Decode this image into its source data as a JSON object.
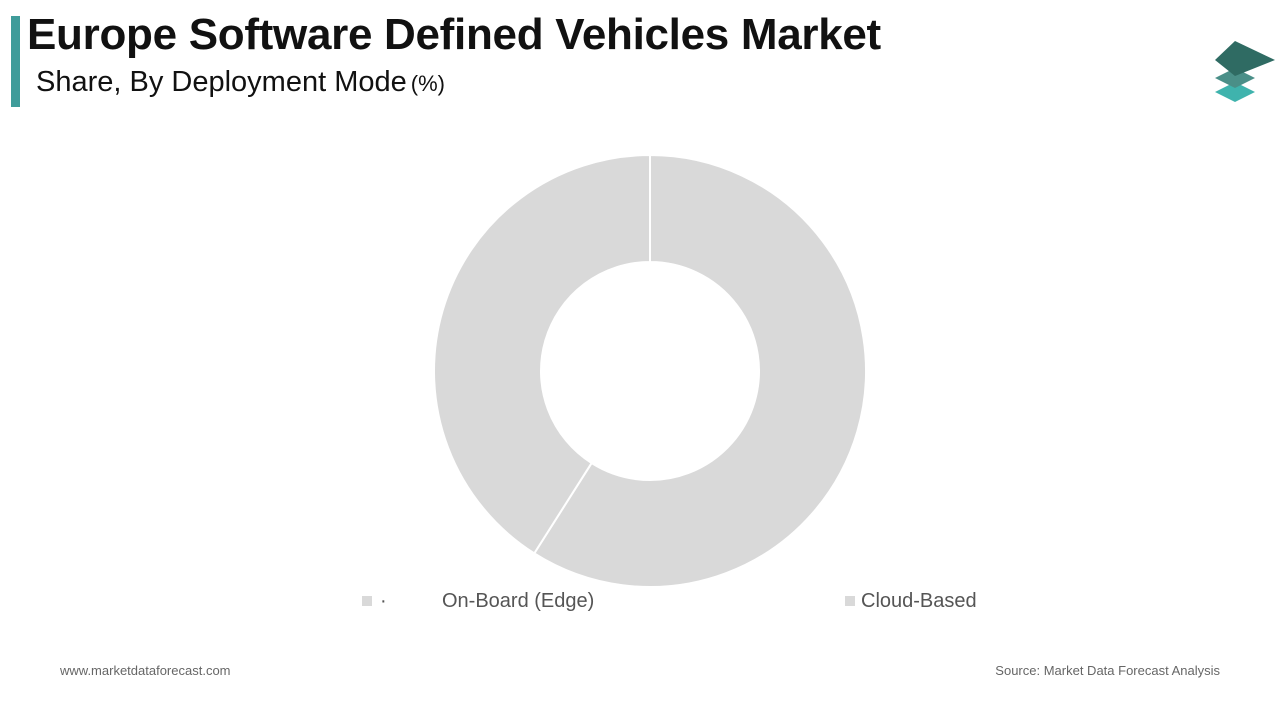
{
  "header": {
    "title": "Europe Software Defined Vehicles Market",
    "subtitle": "Share, By Deployment Mode",
    "unit": "(%)"
  },
  "colors": {
    "accent": "#3f9c9a",
    "slice": "#d9d9d9",
    "logo_top": "#2f6b63",
    "logo_mid": "#4a8f88",
    "logo_bottom": "#3fb3ad"
  },
  "logo": {
    "icon": "layers-logo-icon"
  },
  "chart_data": {
    "type": "pie",
    "donut": true,
    "categories": [
      "On-Board (Edge)",
      "Cloud-Based"
    ],
    "values": [
      59,
      41
    ],
    "legend_position": "bottom"
  },
  "legend": {
    "marker_dot": "·",
    "items": [
      "On-Board (Edge)",
      "Cloud-Based"
    ]
  },
  "footer": {
    "website": "www.marketdataforecast.com",
    "source": "Source: Market Data Forecast Analysis"
  }
}
